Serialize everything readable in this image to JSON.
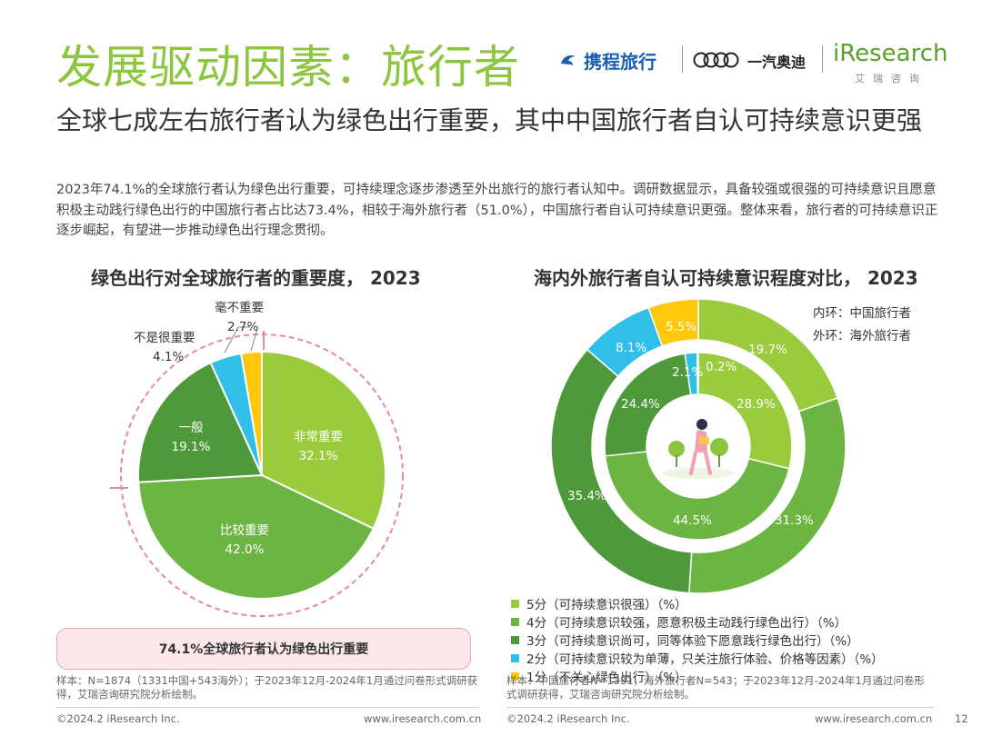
{
  "header": {
    "title": "发展驱动因素：旅行者",
    "subtitle": "全球七成左右旅行者认为绿色出行重要，其中中国旅行者自认可持续意识更强",
    "description": "2023年74.1%的全球旅行者认为绿色出行重要，可持续理念逐步渗透至外出旅行的旅行者认知中。调研数据显示，具备较强或很强的可持续意识且愿意积极主动践行绿色出行的中国旅行者占比达73.4%，相较于海外旅行者（51.0%），中国旅行者自认可持续意识更强。整体来看，旅行者的可持续意识正逐步崛起，有望进一步推动绿色出行理念贯彻。"
  },
  "logos": {
    "ctrip": "携程旅行",
    "faw": "一汽奥迪",
    "iresearch": "iResearch",
    "iresearch_cn": "艾瑞咨询"
  },
  "colors": {
    "green_light": "#9acb3c",
    "green_mid": "#6cb543",
    "green_dark": "#4e9a3a",
    "cyan": "#2fbfe8",
    "yellow": "#ffc80a",
    "title_green": "#8cc63f"
  },
  "chart_data": [
    {
      "type": "pie",
      "title": "绿色出行对全球旅行者的重要度， 2023",
      "categories": [
        "非常重要",
        "比较重要",
        "一般",
        "不是很重要",
        "毫不重要"
      ],
      "values": [
        32.1,
        42.0,
        19.1,
        4.1,
        2.7
      ],
      "value_labels": [
        "32.1%",
        "42.0%",
        "19.1%",
        "4.1%",
        "2.7%"
      ],
      "unit": "%"
    },
    {
      "type": "pie",
      "title": "海内外旅行者自认可持续意识程度对比， 2023",
      "ring_notes": [
        "内环：中国旅行者",
        "外环：海外旅行者"
      ],
      "categories": [
        "5分（可持续意识很强）（%）",
        "4分（可持续意识较强，愿意积极主动践行绿色出行）（%）",
        "3分（可持续意识尚可，同等体验下愿意践行绿色出行）（%）",
        "2分（可持续意识较为单薄，只关注旅行体验、价格等因素）（%）",
        "1分（不关心绿色出行）（%）"
      ],
      "series": [
        {
          "name": "中国旅行者",
          "ring": "inner",
          "values": [
            28.9,
            44.5,
            24.4,
            2.1,
            0.2
          ],
          "value_labels": [
            "28.9%",
            "44.5%",
            "24.4%",
            "2.1%",
            "0.2%"
          ]
        },
        {
          "name": "海外旅行者",
          "ring": "outer",
          "values": [
            19.7,
            31.3,
            35.4,
            8.1,
            5.5
          ],
          "value_labels": [
            "19.7%",
            "31.3%",
            "35.4%",
            "8.1%",
            "5.5%"
          ]
        }
      ],
      "unit": "%"
    }
  ],
  "highlight": "74.1%全球旅行者认为绿色出行重要",
  "notes": {
    "left": "样本：N=1874（1331中国+543海外）；于2023年12月-2024年1月通过问卷形式调研获得，艾瑞咨询研究院分析绘制。",
    "right": "样本：中国旅行者N=1331，海外旅行者N=543；于2023年12月-2024年1月通过问卷形式调研获得，艾瑞咨询研究院分析绘制。"
  },
  "footer": {
    "copyright": "©2024.2 iResearch Inc.",
    "website": "www.iresearch.com.cn",
    "page_number": "12"
  }
}
